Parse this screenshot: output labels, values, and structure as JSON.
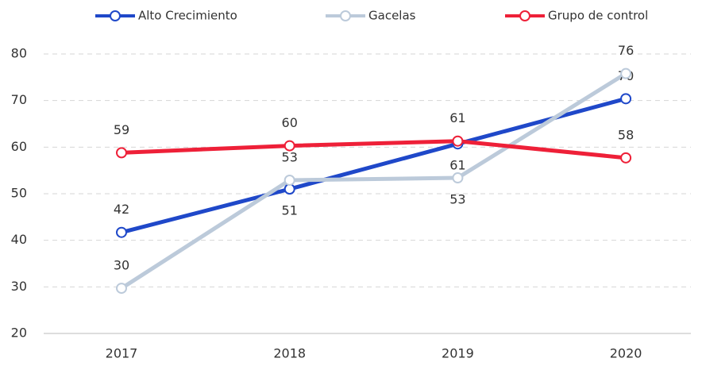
{
  "chart_data": {
    "type": "line",
    "categories": [
      "2017",
      "2018",
      "2019",
      "2020"
    ],
    "series": [
      {
        "name": "Alto Crecimiento",
        "color": "#1f48c9",
        "values": [
          41.7,
          51.0,
          60.7,
          70.4
        ],
        "value_labels": [
          "42",
          "51",
          "61",
          "70"
        ]
      },
      {
        "name": "Gacelas",
        "color": "#bccada",
        "values": [
          29.7,
          52.9,
          53.4,
          75.8
        ],
        "value_labels": [
          "30",
          "53",
          "53",
          "76"
        ]
      },
      {
        "name": "Grupo de control",
        "color": "#ee2038",
        "values": [
          58.8,
          60.3,
          61.3,
          57.7
        ],
        "value_labels": [
          "59",
          "60",
          "61",
          "58"
        ]
      }
    ],
    "ylim": [
      20,
      80
    ],
    "yticks": [
      20,
      30,
      40,
      50,
      60,
      70,
      80
    ],
    "grid": true
  }
}
